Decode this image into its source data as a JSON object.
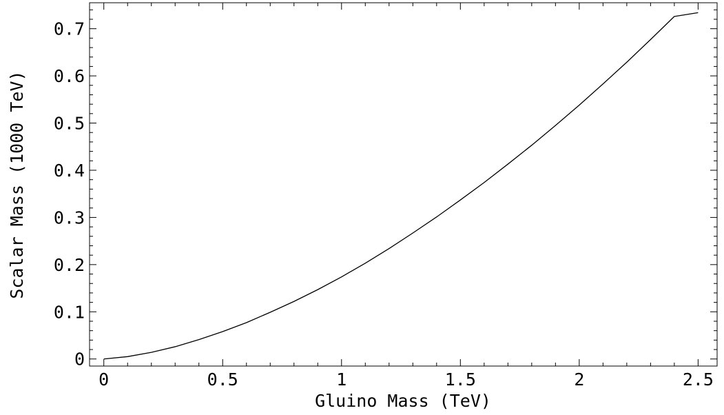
{
  "chart_data": {
    "type": "line",
    "title": "",
    "xlabel": "Gluino Mass (TeV)",
    "ylabel": "Scalar Mass (1000 TeV)",
    "xlim": [
      -0.06,
      2.58
    ],
    "ylim": [
      -0.015,
      0.755
    ],
    "x_ticks": [
      0,
      0.5,
      1,
      1.5,
      2,
      2.5
    ],
    "x_tick_labels": [
      "0",
      "0.5",
      "1",
      "1.5",
      "2",
      "2.5"
    ],
    "y_ticks": [
      0,
      0.1,
      0.2,
      0.3,
      0.4,
      0.5,
      0.6,
      0.7
    ],
    "y_tick_labels": [
      "0",
      "0.1",
      "0.2",
      "0.3",
      "0.4",
      "0.5",
      "0.6",
      "0.7"
    ],
    "grid": false,
    "legend": "none",
    "line_color": "#000000",
    "series": [
      {
        "x": [
          0,
          0.1,
          0.2,
          0.3,
          0.4,
          0.5,
          0.6,
          0.7,
          0.8,
          0.9,
          1.0,
          1.1,
          1.2,
          1.3,
          1.4,
          1.5,
          1.6,
          1.7,
          1.8,
          1.9,
          2.0,
          2.1,
          2.2,
          2.3,
          2.4,
          2.5
        ],
        "values": [
          0,
          0.005,
          0.014,
          0.026,
          0.041,
          0.058,
          0.077,
          0.099,
          0.122,
          0.147,
          0.174,
          0.203,
          0.234,
          0.267,
          0.301,
          0.337,
          0.374,
          0.413,
          0.453,
          0.495,
          0.538,
          0.583,
          0.629,
          0.677,
          0.726,
          0.734
        ]
      }
    ]
  }
}
